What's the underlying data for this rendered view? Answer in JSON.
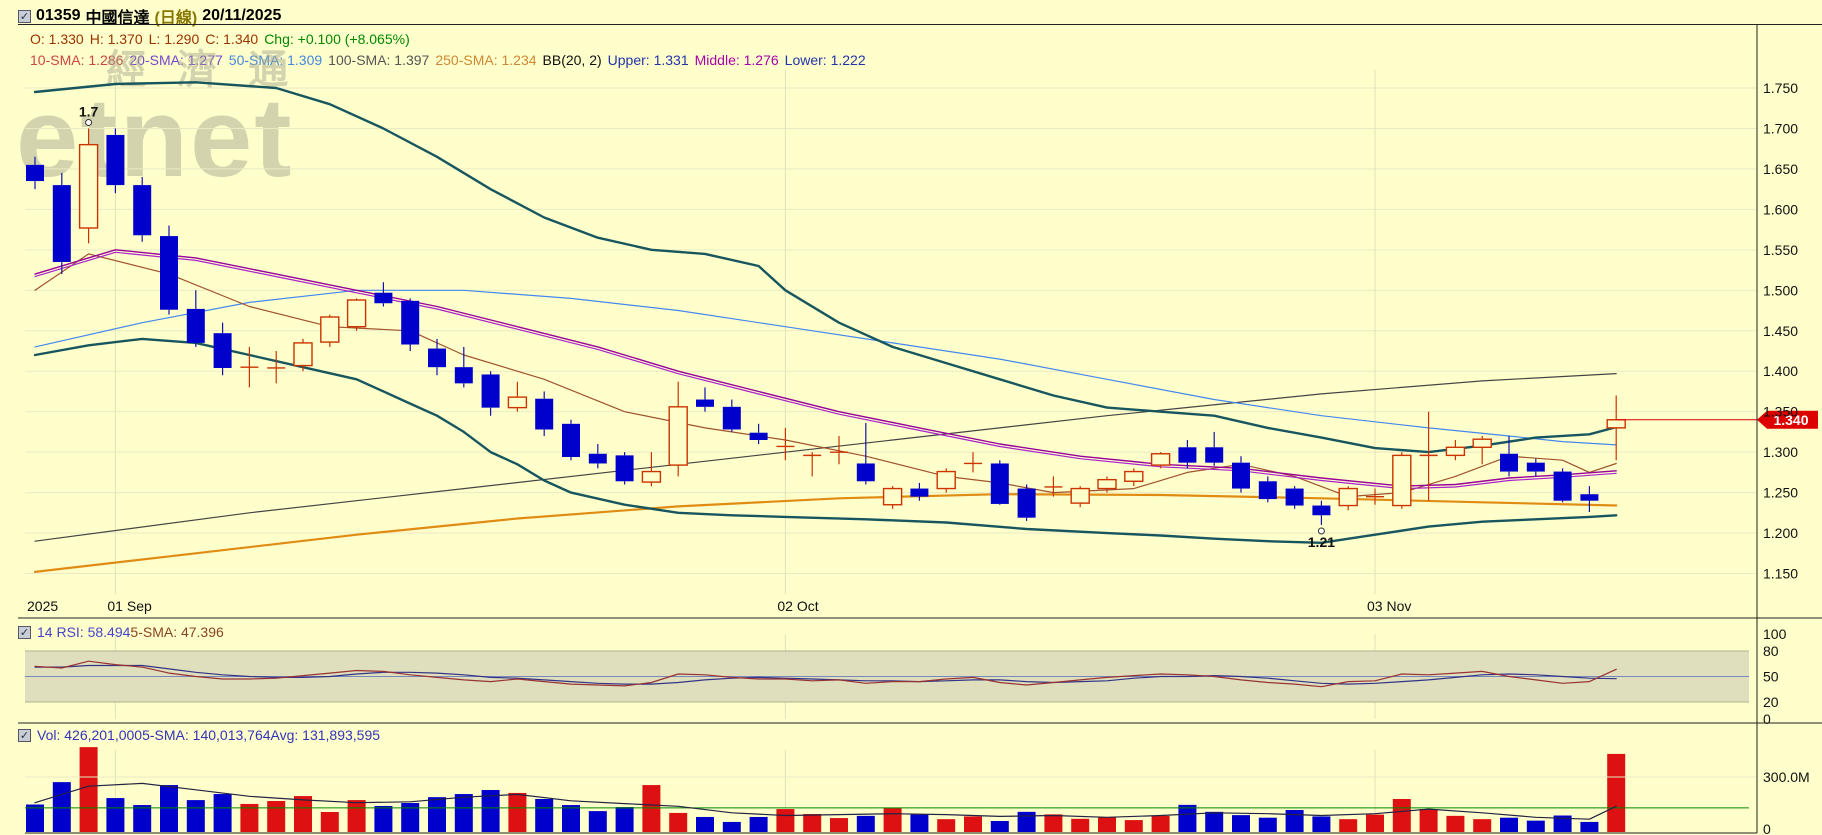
{
  "header": {
    "code": "01359",
    "name": "中國信達",
    "period": "(日線)",
    "date": "20/11/2025",
    "ohlc_segments": [
      {
        "text": "O: 1.330",
        "color": "#993300"
      },
      {
        "text": "H: 1.370",
        "color": "#993300"
      },
      {
        "text": "L: 1.290",
        "color": "#993300"
      },
      {
        "text": "C: 1.340",
        "color": "#993300"
      },
      {
        "text": "Chg: +0.100 (+8.065%)",
        "color": "#008800"
      }
    ],
    "indicator_segments": [
      {
        "text": "10-SMA: 1.286",
        "color": "#cc4444"
      },
      {
        "text": "20-SMA: 1.277",
        "color": "#7744cc"
      },
      {
        "text": "50-SMA: 1.309",
        "color": "#4488dd"
      },
      {
        "text": "100-SMA: 1.397",
        "color": "#555555"
      },
      {
        "text": "250-SMA: 1.234",
        "color": "#cc8833"
      },
      {
        "text": "BB(20, 2)",
        "color": "#111111"
      },
      {
        "text": "Upper: 1.331",
        "color": "#2233aa"
      },
      {
        "text": "Middle: 1.276",
        "color": "#aa00aa"
      },
      {
        "text": "Lower: 1.222",
        "color": "#2233aa"
      }
    ]
  },
  "rsi_header_segments": [
    {
      "text": "14 RSI: 58.494",
      "color": "#4444cc"
    },
    {
      "text": "5-SMA: 47.396",
      "color": "#884422"
    }
  ],
  "vol_header_segments": [
    {
      "text": "Vol: 426,201,000",
      "color": "#3333bb"
    },
    {
      "text": "5-SMA: 140,013,764",
      "color": "#3333bb"
    },
    {
      "text": "Avg: 131,893,595",
      "color": "#3333bb"
    }
  ],
  "watermark": {
    "line1": "經 濟 通",
    "line2": "etnet"
  },
  "annotations": {
    "high_label": "1.7",
    "low_label": "1.21",
    "last_price_tag": "1.340"
  },
  "axes": {
    "price_labels": [
      "1.750",
      "1.700",
      "1.650",
      "1.600",
      "1.550",
      "1.500",
      "1.450",
      "1.400",
      "1.350",
      "1.300",
      "1.250",
      "1.200",
      "1.150"
    ],
    "rsi_labels": [
      "100",
      "80",
      "50",
      "20",
      "0"
    ],
    "vol_labels": [
      "300.0M",
      "0"
    ],
    "date_labels": [
      {
        "label": "2025",
        "i": 0,
        "grid": false
      },
      {
        "label": "01 Sep",
        "i": 3,
        "grid": true
      },
      {
        "label": "02 Oct",
        "i": 28,
        "grid": true
      },
      {
        "label": "03 Nov",
        "i": 50,
        "grid": true
      }
    ]
  },
  "colors": {
    "bg": "#ffffcc",
    "grid": "#e9e9c4",
    "vgrid": "#e2e2ba",
    "down_candle": "#0000cc",
    "down_wick": "#1111aa",
    "up_candle": "#cc3300",
    "bb_band": "#17565e",
    "sma10": "#a0522d",
    "sma20": "#990099",
    "bb_mid": "#aa22cc",
    "sma50": "#4488ee",
    "sma100": "#444444",
    "sma250": "#e08c14",
    "rsi_line": "#993333",
    "rsi_sma_line": "#333388",
    "rsi_band_fill": "#dfdfbd",
    "rsi_band_edge": "#b0b090",
    "rsi_mid_line": "#7788bb",
    "vol_up": "#dd1111",
    "vol_down": "#0000cc",
    "vol_avg_line": "#008800",
    "vol_sma_line": "#222244",
    "price_tag_bg": "#dd0000",
    "price_tag_text": "#ffffff",
    "axis_text": "#111111"
  },
  "chart_data": {
    "type": "candlestick",
    "title": "01359 中國信達 (日線) 20/11/2025",
    "price_range": [
      1.15,
      1.75
    ],
    "rsi_range": [
      0,
      100
    ],
    "vol_range_m": [
      0,
      500
    ],
    "vol_avg_m": 131.9,
    "candles": [
      [
        1.655,
        1.665,
        1.625,
        1.635
      ],
      [
        1.63,
        1.645,
        1.52,
        1.535
      ],
      [
        1.577,
        1.7,
        1.558,
        1.68
      ],
      [
        1.692,
        1.7,
        1.62,
        1.63
      ],
      [
        1.63,
        1.64,
        1.56,
        1.568
      ],
      [
        1.567,
        1.58,
        1.47,
        1.476
      ],
      [
        1.477,
        1.5,
        1.43,
        1.435
      ],
      [
        1.447,
        1.46,
        1.395,
        1.404
      ],
      [
        1.405,
        1.43,
        1.38,
        1.405
      ],
      [
        1.403,
        1.425,
        1.385,
        1.404
      ],
      [
        1.407,
        1.44,
        1.4,
        1.435
      ],
      [
        1.436,
        1.47,
        1.43,
        1.467
      ],
      [
        1.455,
        1.49,
        1.45,
        1.488
      ],
      [
        1.497,
        1.51,
        1.48,
        1.484
      ],
      [
        1.487,
        1.49,
        1.425,
        1.433
      ],
      [
        1.428,
        1.44,
        1.395,
        1.405
      ],
      [
        1.405,
        1.43,
        1.38,
        1.385
      ],
      [
        1.396,
        1.4,
        1.345,
        1.355
      ],
      [
        1.355,
        1.387,
        1.35,
        1.368
      ],
      [
        1.366,
        1.375,
        1.32,
        1.328
      ],
      [
        1.335,
        1.34,
        1.29,
        1.294
      ],
      [
        1.298,
        1.31,
        1.28,
        1.286
      ],
      [
        1.296,
        1.3,
        1.26,
        1.264
      ],
      [
        1.263,
        1.3,
        1.258,
        1.276
      ],
      [
        1.284,
        1.387,
        1.27,
        1.356
      ],
      [
        1.365,
        1.38,
        1.35,
        1.356
      ],
      [
        1.356,
        1.365,
        1.325,
        1.328
      ],
      [
        1.324,
        1.335,
        1.31,
        1.315
      ],
      [
        1.307,
        1.33,
        1.29,
        1.307
      ],
      [
        1.296,
        1.3,
        1.27,
        1.296
      ],
      [
        1.3,
        1.32,
        1.285,
        1.3
      ],
      [
        1.286,
        1.336,
        1.26,
        1.264
      ],
      [
        1.235,
        1.258,
        1.23,
        1.255
      ],
      [
        1.255,
        1.262,
        1.24,
        1.245
      ],
      [
        1.255,
        1.28,
        1.25,
        1.276
      ],
      [
        1.286,
        1.3,
        1.275,
        1.286
      ],
      [
        1.286,
        1.29,
        1.235,
        1.236
      ],
      [
        1.255,
        1.26,
        1.215,
        1.219
      ],
      [
        1.257,
        1.27,
        1.245,
        1.257
      ],
      [
        1.237,
        1.258,
        1.232,
        1.255
      ],
      [
        1.255,
        1.27,
        1.25,
        1.266
      ],
      [
        1.264,
        1.28,
        1.258,
        1.276
      ],
      [
        1.284,
        1.3,
        1.28,
        1.298
      ],
      [
        1.306,
        1.315,
        1.28,
        1.287
      ],
      [
        1.306,
        1.325,
        1.283,
        1.287
      ],
      [
        1.287,
        1.295,
        1.25,
        1.255
      ],
      [
        1.264,
        1.27,
        1.238,
        1.242
      ],
      [
        1.255,
        1.258,
        1.23,
        1.234
      ],
      [
        1.234,
        1.24,
        1.21,
        1.222
      ],
      [
        1.234,
        1.258,
        1.228,
        1.255
      ],
      [
        1.245,
        1.255,
        1.235,
        1.245
      ],
      [
        1.234,
        1.3,
        1.23,
        1.296
      ],
      [
        1.296,
        1.35,
        1.24,
        1.296
      ],
      [
        1.296,
        1.315,
        1.29,
        1.306
      ],
      [
        1.306,
        1.32,
        1.285,
        1.316
      ],
      [
        1.298,
        1.32,
        1.27,
        1.276
      ],
      [
        1.287,
        1.292,
        1.27,
        1.276
      ],
      [
        1.276,
        1.28,
        1.238,
        1.24
      ],
      [
        1.248,
        1.258,
        1.226,
        1.24
      ],
      [
        1.33,
        1.37,
        1.29,
        1.34
      ]
    ],
    "volumes_m": [
      150,
      272,
      463,
      185,
      147,
      256,
      174,
      207,
      153,
      169,
      196,
      109,
      174,
      142,
      158,
      190,
      207,
      229,
      213,
      180,
      147,
      114,
      136,
      256,
      104,
      82,
      55,
      82,
      125,
      98,
      76,
      88,
      132,
      95,
      70,
      85,
      60,
      110,
      96,
      72,
      80,
      65,
      88,
      148,
      110,
      92,
      78,
      120,
      85,
      70,
      95,
      180,
      125,
      88,
      70,
      78,
      62,
      90,
      55,
      426
    ],
    "rsi": [
      62,
      60,
      68,
      64,
      61,
      54,
      50,
      47,
      47,
      48,
      51,
      54,
      57,
      56,
      52,
      49,
      46,
      44,
      47,
      44,
      41,
      40,
      39,
      43,
      53,
      52,
      49,
      47,
      47,
      45,
      46,
      42,
      44,
      44,
      47,
      49,
      43,
      40,
      43,
      46,
      49,
      51,
      53,
      52,
      50,
      46,
      43,
      41,
      38,
      44,
      45,
      53,
      52,
      54,
      56,
      50,
      46,
      42,
      44,
      58.5
    ],
    "rsi_sma5": [
      61,
      61,
      63,
      63,
      63,
      59,
      55,
      52,
      50,
      49,
      49,
      50,
      53,
      55,
      55,
      54,
      52,
      49,
      48,
      46,
      44,
      42,
      41,
      41,
      43,
      46,
      48,
      49,
      48,
      47,
      46,
      45,
      45,
      44,
      45,
      46,
      46,
      44,
      43,
      44,
      45,
      48,
      50,
      50,
      51,
      50,
      48,
      45,
      42,
      41,
      42,
      44,
      46,
      49,
      52,
      53,
      52,
      50,
      48,
      47.4
    ],
    "vol_sma5_m": [
      [
        0,
        160
      ],
      [
        2,
        250
      ],
      [
        4,
        265
      ],
      [
        6,
        230
      ],
      [
        8,
        195
      ],
      [
        10,
        175
      ],
      [
        12,
        160
      ],
      [
        14,
        165
      ],
      [
        16,
        190
      ],
      [
        18,
        205
      ],
      [
        20,
        170
      ],
      [
        22,
        155
      ],
      [
        24,
        140
      ],
      [
        26,
        105
      ],
      [
        28,
        90
      ],
      [
        30,
        95
      ],
      [
        32,
        100
      ],
      [
        34,
        95
      ],
      [
        36,
        85
      ],
      [
        38,
        90
      ],
      [
        40,
        80
      ],
      [
        42,
        90
      ],
      [
        44,
        105
      ],
      [
        46,
        100
      ],
      [
        48,
        90
      ],
      [
        50,
        100
      ],
      [
        52,
        125
      ],
      [
        54,
        105
      ],
      [
        56,
        80
      ],
      [
        58,
        70
      ],
      [
        59,
        140
      ]
    ],
    "overlays": {
      "sma10": [
        [
          0,
          1.5
        ],
        [
          2,
          1.545
        ],
        [
          5,
          1.52
        ],
        [
          8,
          1.48
        ],
        [
          11,
          1.455
        ],
        [
          14,
          1.45
        ],
        [
          16,
          1.42
        ],
        [
          19,
          1.39
        ],
        [
          22,
          1.35
        ],
        [
          25,
          1.33
        ],
        [
          28,
          1.315
        ],
        [
          31,
          1.295
        ],
        [
          34,
          1.27
        ],
        [
          36,
          1.262
        ],
        [
          38,
          1.25
        ],
        [
          41,
          1.255
        ],
        [
          43,
          1.275
        ],
        [
          45,
          1.285
        ],
        [
          47,
          1.27
        ],
        [
          49,
          1.245
        ],
        [
          51,
          1.25
        ],
        [
          53,
          1.27
        ],
        [
          55,
          1.295
        ],
        [
          57,
          1.29
        ],
        [
          58,
          1.275
        ],
        [
          59,
          1.286
        ]
      ],
      "sma20": [
        [
          0,
          1.52
        ],
        [
          3,
          1.55
        ],
        [
          6,
          1.54
        ],
        [
          9,
          1.52
        ],
        [
          12,
          1.5
        ],
        [
          15,
          1.48
        ],
        [
          18,
          1.455
        ],
        [
          21,
          1.43
        ],
        [
          24,
          1.4
        ],
        [
          27,
          1.375
        ],
        [
          30,
          1.35
        ],
        [
          33,
          1.33
        ],
        [
          36,
          1.31
        ],
        [
          39,
          1.295
        ],
        [
          42,
          1.285
        ],
        [
          45,
          1.28
        ],
        [
          48,
          1.268
        ],
        [
          51,
          1.258
        ],
        [
          53,
          1.26
        ],
        [
          55,
          1.268
        ],
        [
          57,
          1.272
        ],
        [
          59,
          1.277
        ]
      ],
      "sma50": [
        [
          0,
          1.43
        ],
        [
          4,
          1.46
        ],
        [
          8,
          1.485
        ],
        [
          12,
          1.5
        ],
        [
          16,
          1.5
        ],
        [
          20,
          1.49
        ],
        [
          24,
          1.475
        ],
        [
          28,
          1.455
        ],
        [
          32,
          1.435
        ],
        [
          36,
          1.415
        ],
        [
          40,
          1.39
        ],
        [
          44,
          1.365
        ],
        [
          48,
          1.345
        ],
        [
          52,
          1.33
        ],
        [
          55,
          1.32
        ],
        [
          57,
          1.313
        ],
        [
          59,
          1.309
        ]
      ],
      "sma100": [
        [
          0,
          1.19
        ],
        [
          8,
          1.225
        ],
        [
          16,
          1.255
        ],
        [
          24,
          1.285
        ],
        [
          32,
          1.315
        ],
        [
          40,
          1.345
        ],
        [
          48,
          1.372
        ],
        [
          54,
          1.388
        ],
        [
          59,
          1.397
        ]
      ],
      "sma250": [
        [
          0,
          1.152
        ],
        [
          6,
          1.175
        ],
        [
          12,
          1.198
        ],
        [
          18,
          1.218
        ],
        [
          24,
          1.233
        ],
        [
          30,
          1.243
        ],
        [
          36,
          1.248
        ],
        [
          42,
          1.247
        ],
        [
          48,
          1.243
        ],
        [
          54,
          1.238
        ],
        [
          59,
          1.234
        ]
      ],
      "bb_upper": [
        [
          0,
          1.745
        ],
        [
          3,
          1.755
        ],
        [
          6,
          1.757
        ],
        [
          9,
          1.75
        ],
        [
          11,
          1.73
        ],
        [
          13,
          1.7
        ],
        [
          15,
          1.665
        ],
        [
          17,
          1.625
        ],
        [
          19,
          1.59
        ],
        [
          21,
          1.565
        ],
        [
          23,
          1.55
        ],
        [
          25,
          1.545
        ],
        [
          27,
          1.53
        ],
        [
          28,
          1.5
        ],
        [
          30,
          1.46
        ],
        [
          32,
          1.43
        ],
        [
          34,
          1.41
        ],
        [
          36,
          1.39
        ],
        [
          38,
          1.37
        ],
        [
          40,
          1.355
        ],
        [
          42,
          1.35
        ],
        [
          44,
          1.345
        ],
        [
          46,
          1.33
        ],
        [
          48,
          1.318
        ],
        [
          50,
          1.305
        ],
        [
          52,
          1.3
        ],
        [
          54,
          1.308
        ],
        [
          56,
          1.318
        ],
        [
          58,
          1.322
        ],
        [
          59,
          1.331
        ]
      ],
      "bb_lower": [
        [
          0,
          1.42
        ],
        [
          2,
          1.432
        ],
        [
          4,
          1.44
        ],
        [
          6,
          1.435
        ],
        [
          8,
          1.42
        ],
        [
          10,
          1.405
        ],
        [
          12,
          1.39
        ],
        [
          14,
          1.36
        ],
        [
          15,
          1.345
        ],
        [
          16,
          1.325
        ],
        [
          17,
          1.3
        ],
        [
          18,
          1.285
        ],
        [
          19,
          1.265
        ],
        [
          20,
          1.25
        ],
        [
          22,
          1.235
        ],
        [
          24,
          1.225
        ],
        [
          26,
          1.222
        ],
        [
          28,
          1.22
        ],
        [
          31,
          1.217
        ],
        [
          34,
          1.213
        ],
        [
          37,
          1.205
        ],
        [
          40,
          1.2
        ],
        [
          42,
          1.197
        ],
        [
          44,
          1.193
        ],
        [
          46,
          1.19
        ],
        [
          48,
          1.188
        ],
        [
          50,
          1.198
        ],
        [
          52,
          1.208
        ],
        [
          54,
          1.214
        ],
        [
          56,
          1.217
        ],
        [
          58,
          1.22
        ],
        [
          59,
          1.222
        ]
      ]
    },
    "annotated_high": {
      "i": 2,
      "price": 1.7,
      "label": "1.7"
    },
    "annotated_low": {
      "i": 48,
      "price": 1.21,
      "label": "1.21"
    },
    "last_close": 1.34
  }
}
